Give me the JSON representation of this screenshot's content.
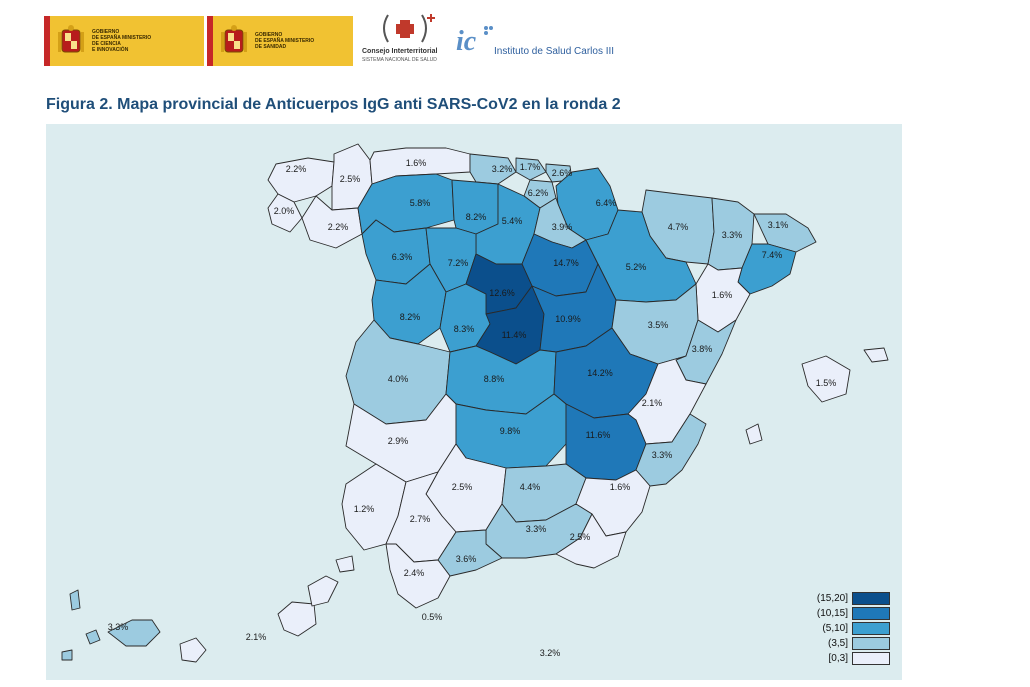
{
  "header": {
    "gov1_label": "GOBIERNO\nDE ESPAÑA   MINISTERIO\nDE CIENCIA\nE INNOVACIÓN",
    "gov2_label": "GOBIERNO\nDE ESPAÑA   MINISTERIO\nDE SANIDAD",
    "cisns_title": "Consejo Interterritorial",
    "cisns_subtitle": "SISTEMA NACIONAL DE SALUD",
    "isciii_name": "Instituto de Salud Carlos III"
  },
  "figure_title": "Figura 2. Mapa provincial de Anticuerpos IgG anti SARS-CoV2 en la ronda 2",
  "colors": {
    "c15_20": "#0b4f8c",
    "c10_15": "#1f78b8",
    "c5_10": "#3c9fd0",
    "c3_5": "#9ccbe0",
    "c0_3": "#eaeffa",
    "sea": "#dcecef"
  },
  "legend": [
    {
      "label": "(15,20]",
      "cls": "c15_20"
    },
    {
      "label": "(10,15]",
      "cls": "c10_15"
    },
    {
      "label": "(5,10]",
      "cls": "c5_10"
    },
    {
      "label": "(3,5]",
      "cls": "c3_5"
    },
    {
      "label": "[0,3]",
      "cls": "c0_3"
    }
  ],
  "labels": {
    "lugo": "2.5%",
    "coruna": "2.2%",
    "pontevedra": "2.0%",
    "ourense": "2.2%",
    "asturias": "1.6%",
    "cantabria": "3.2%",
    "vizcaya": "1.7%",
    "guipuzcoa": "2.6%",
    "alava": "6.2%",
    "navarra": "6.4%",
    "huesca": "4.7%",
    "lleida": "3.3%",
    "girona": "3.1%",
    "barcelona": "7.4%",
    "leon": "5.8%",
    "palencia": "8.2%",
    "burgos": "5.4%",
    "larioja": "3.9%",
    "zamora": "6.3%",
    "valladolid": "7.2%",
    "soria": "14.7%",
    "zaragoza": "5.2%",
    "tarragona": "1.6%",
    "salamanca": "8.2%",
    "avila": "8.3%",
    "segovia": "12.6%",
    "madrid": "11.4%",
    "guadalajara": "10.9%",
    "teruel": "3.5%",
    "castellon": "3.8%",
    "caceres": "4.0%",
    "toledo": "8.8%",
    "cuenca": "14.2%",
    "valencia": "2.1%",
    "baleares": "1.5%",
    "badajoz": "2.9%",
    "ciudadreal": "9.8%",
    "albacete": "11.6%",
    "alicante": "3.3%",
    "cordoba": "2.5%",
    "jaen": "4.4%",
    "murcia": "1.6%",
    "huelva": "1.2%",
    "sevilla": "2.7%",
    "granada": "3.3%",
    "almeria": "2.5%",
    "malaga": "3.6%",
    "cadiz": "2.4%",
    "ceuta": "0.5%",
    "tenerife": "3.3%",
    "laspalmas": "2.1%",
    "melilla": "3.2%"
  }
}
